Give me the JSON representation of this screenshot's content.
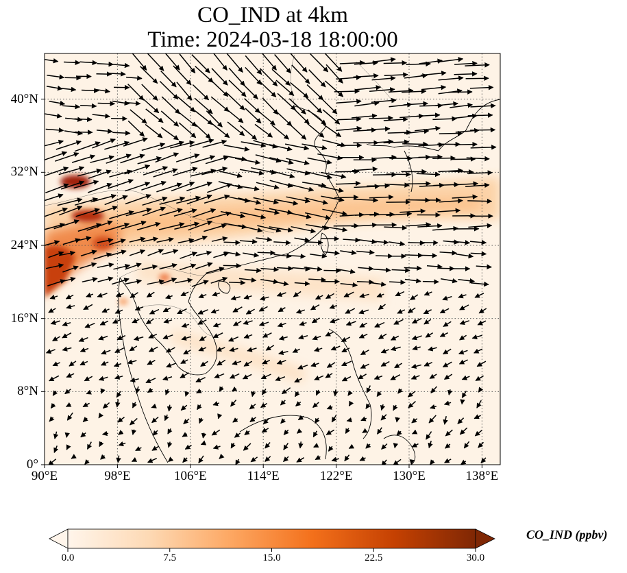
{
  "title_line1": "CO_IND at 4km",
  "title_line2": "Time: 2024-03-18 18:00:00",
  "x_ticks": [
    "90°E",
    "98°E",
    "106°E",
    "114°E",
    "122°E",
    "130°E",
    "138°E"
  ],
  "y_ticks": [
    "40°N",
    "32°N",
    "24°N",
    "16°N",
    "8°N",
    "0°"
  ],
  "colorbar": {
    "label": "CO_IND (ppbv)",
    "ticks": [
      "0.0",
      "7.5",
      "15.0",
      "22.5",
      "30.0"
    ],
    "colors": [
      "#fff5eb",
      "#fdd9b4",
      "#fda762",
      "#f3701b",
      "#c54102",
      "#7f2704"
    ]
  },
  "map": {
    "lon_range": [
      90,
      140
    ],
    "lat_range": [
      0,
      45
    ],
    "gridlines": "dotted",
    "colormap": "Oranges"
  }
}
